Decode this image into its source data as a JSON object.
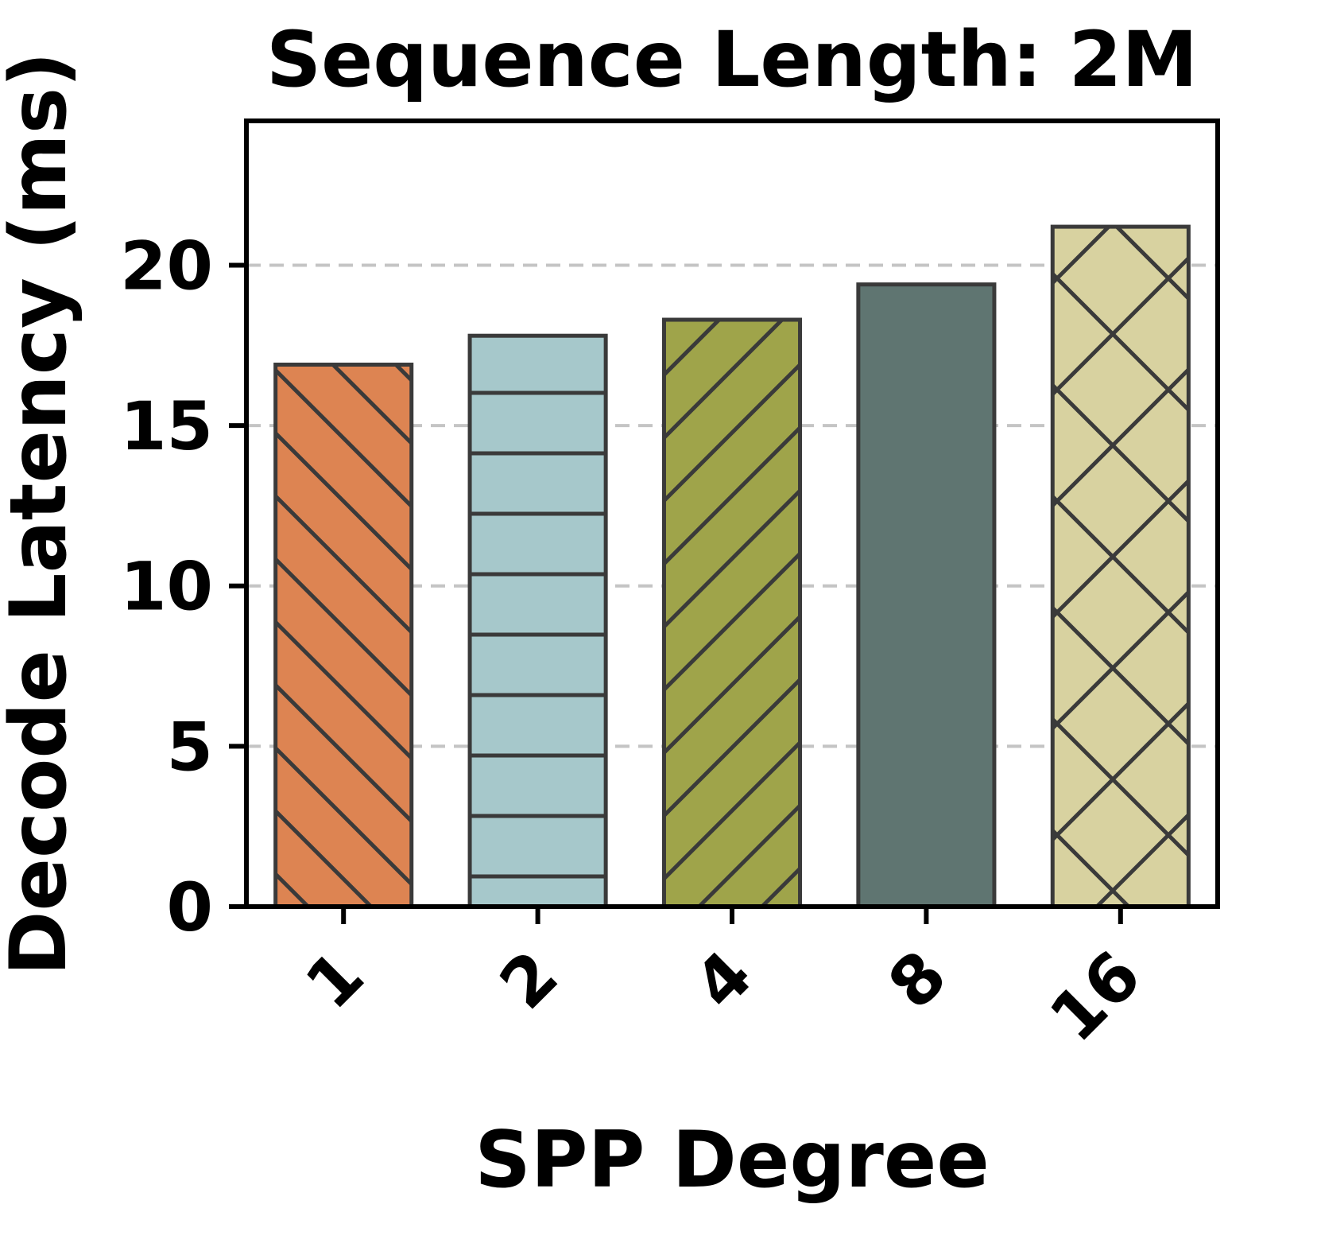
{
  "chart_data": {
    "type": "bar",
    "title": "Sequence Length: 2M",
    "xlabel": "SPP Degree",
    "ylabel": "Decode Latency (ms)",
    "categories": [
      "1",
      "2",
      "4",
      "8",
      "16"
    ],
    "values": [
      16.9,
      17.8,
      18.3,
      19.4,
      21.2
    ],
    "ylim": [
      0,
      24.5
    ],
    "yticks": [
      0,
      5,
      10,
      15,
      20
    ],
    "grid": true,
    "legend": "none",
    "bar_styles": [
      {
        "color": "#DD8452",
        "hatch": "\\"
      },
      {
        "color": "#A6C8CB",
        "hatch": "-"
      },
      {
        "color": "#9FA44A",
        "hatch": "/"
      },
      {
        "color": "#5F7571",
        "hatch": ""
      },
      {
        "color": "#D8D2A0",
        "hatch": "x"
      }
    ],
    "hatch_color": "#3A3A3A",
    "edge_color": "#3A3A3A",
    "grid_color": "#C4C4C4",
    "axis_color": "#000000",
    "background": "#FFFFFF"
  }
}
